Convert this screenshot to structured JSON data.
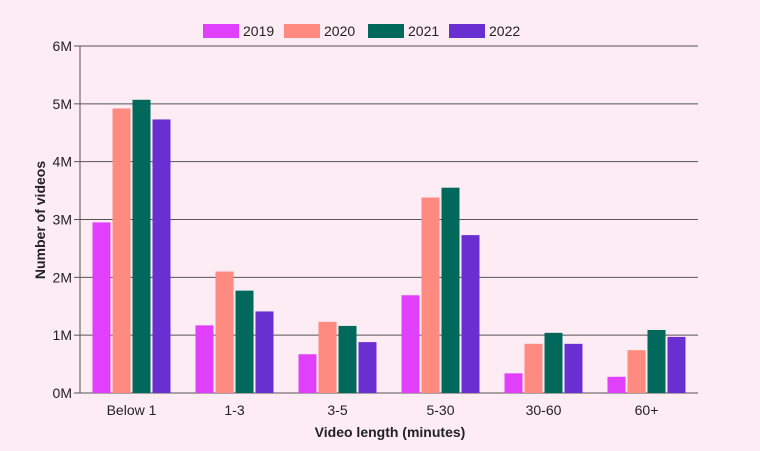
{
  "chart_data": {
    "type": "bar",
    "title": "",
    "xlabel": "Video length (minutes)",
    "ylabel": "Number of videos",
    "categories": [
      "Below 1",
      "1-3",
      "3-5",
      "5-30",
      "30-60",
      "60+"
    ],
    "ylim": [
      0,
      6000000
    ],
    "yticks": [
      {
        "value": 0,
        "label": "0M"
      },
      {
        "value": 1000000,
        "label": "1M"
      },
      {
        "value": 2000000,
        "label": "2M"
      },
      {
        "value": 3000000,
        "label": "3M"
      },
      {
        "value": 4000000,
        "label": "4M"
      },
      {
        "value": 5000000,
        "label": "5M"
      },
      {
        "value": 6000000,
        "label": "6M"
      }
    ],
    "grid": true,
    "legend_position": "top-center",
    "series": [
      {
        "name": "2019",
        "color": "#e040fb",
        "values": [
          2950000,
          1170000,
          670000,
          1690000,
          340000,
          280000
        ]
      },
      {
        "name": "2020",
        "color": "#ff8a80",
        "values": [
          4920000,
          2100000,
          1230000,
          3380000,
          850000,
          740000
        ]
      },
      {
        "name": "2021",
        "color": "#00695c",
        "values": [
          5070000,
          1770000,
          1160000,
          3550000,
          1040000,
          1090000
        ]
      },
      {
        "name": "2022",
        "color": "#6a2fd1",
        "values": [
          4730000,
          1410000,
          880000,
          2730000,
          850000,
          970000
        ]
      }
    ]
  }
}
